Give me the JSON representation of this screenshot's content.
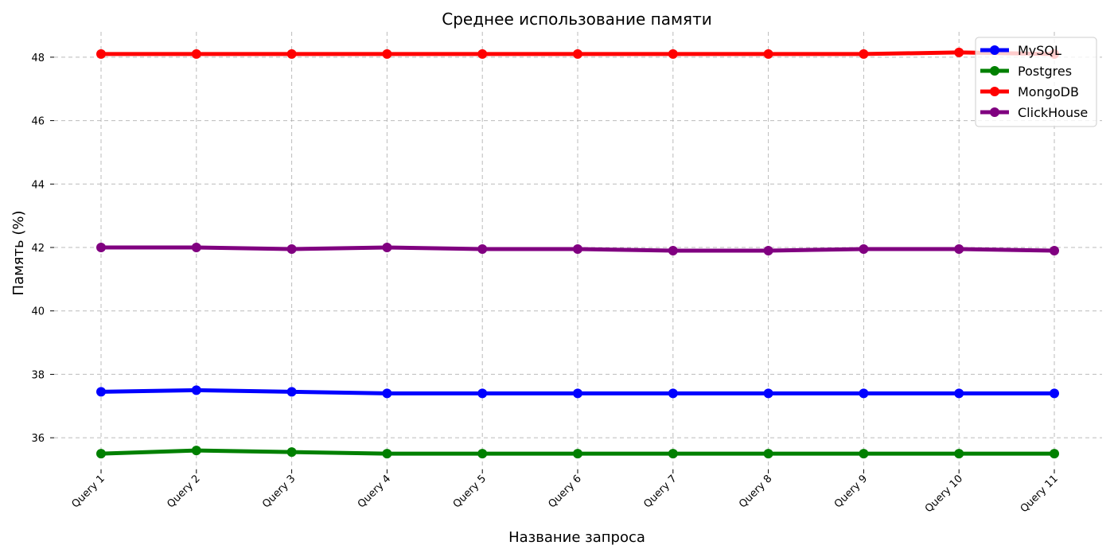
{
  "chart_data": {
    "type": "line",
    "title": "Среднее использование памяти",
    "xlabel": "Название запроса",
    "ylabel": "Память (%)",
    "categories": [
      "Query 1",
      "Query 2",
      "Query 3",
      "Query 4",
      "Query 5",
      "Query 6",
      "Query 7",
      "Query 8",
      "Query 9",
      "Query 10",
      "Query 11"
    ],
    "ylim": [
      35,
      48.8
    ],
    "yticks": [
      36,
      38,
      40,
      42,
      44,
      46,
      48
    ],
    "grid": true,
    "legend_position": "top-right",
    "series": [
      {
        "name": "MySQL",
        "color": "#0000ff",
        "values": [
          37.45,
          37.5,
          37.45,
          37.4,
          37.4,
          37.4,
          37.4,
          37.4,
          37.4,
          37.4,
          37.4
        ]
      },
      {
        "name": "Postgres",
        "color": "#008000",
        "values": [
          35.5,
          35.6,
          35.55,
          35.5,
          35.5,
          35.5,
          35.5,
          35.5,
          35.5,
          35.5,
          35.5
        ]
      },
      {
        "name": "MongoDB",
        "color": "#ff0000",
        "values": [
          48.1,
          48.1,
          48.1,
          48.1,
          48.1,
          48.1,
          48.1,
          48.1,
          48.1,
          48.15,
          48.1
        ]
      },
      {
        "name": "ClickHouse",
        "color": "#800080",
        "values": [
          42.0,
          42.0,
          41.95,
          42.0,
          41.95,
          41.95,
          41.9,
          41.9,
          41.95,
          41.95,
          41.9
        ]
      }
    ]
  }
}
